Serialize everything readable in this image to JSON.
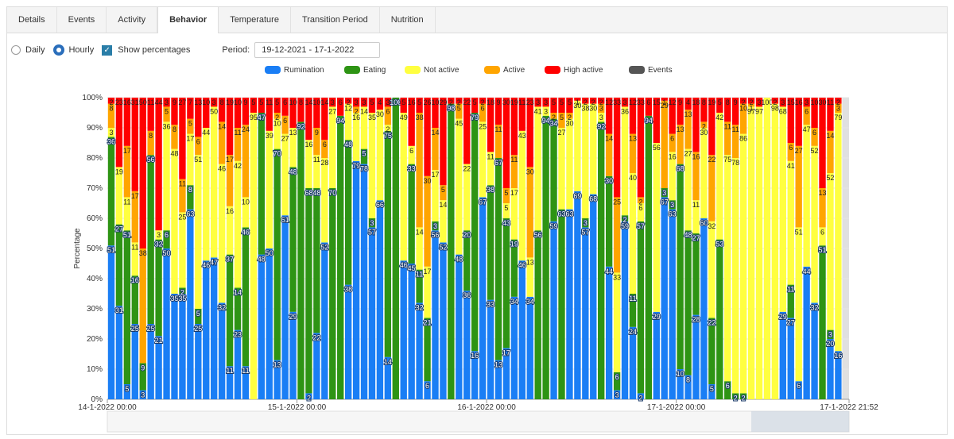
{
  "tabs": [
    "Details",
    "Events",
    "Activity",
    "Behavior",
    "Temperature",
    "Transition Period",
    "Nutrition"
  ],
  "active_tab": 3,
  "controls": {
    "daily": "Daily",
    "hourly": "Hourly",
    "show_percentages": "Show percentages",
    "period_label": "Period:",
    "period": "19-12-2021 - 17-1-2022"
  },
  "chart_data": {
    "type": "bar",
    "stacked": true,
    "y_label": "Percentage",
    "grid": true,
    "x": [
      0,
      1,
      2,
      3,
      4,
      5,
      6,
      7,
      8,
      9,
      10,
      11,
      12,
      13,
      14,
      15,
      16,
      17,
      18,
      19,
      20,
      21,
      22,
      23,
      24,
      25,
      26,
      27,
      28,
      29,
      30,
      31,
      32,
      33,
      34,
      35,
      36,
      37,
      38,
      39,
      40,
      41,
      42,
      43,
      44,
      45,
      46,
      47,
      48,
      49,
      50,
      51,
      52,
      53,
      54,
      55,
      56,
      57,
      58,
      59,
      60,
      61,
      62,
      63,
      64,
      65,
      66,
      67,
      68,
      69,
      70,
      71,
      72,
      73,
      74,
      75,
      76,
      77,
      78,
      79,
      80,
      81,
      82,
      83,
      84,
      85,
      86,
      87,
      88,
      89,
      90,
      91,
      92
    ],
    "xlim": [
      0,
      93.87
    ],
    "xticks": [
      {
        "value": 0,
        "label": "14-1-2022 00:00"
      },
      {
        "value": 24,
        "label": "15-1-2022 00:00"
      },
      {
        "value": 48,
        "label": "16-1-2022 00:00"
      },
      {
        "value": 72,
        "label": "17-1-2022 00:00"
      },
      {
        "value": 93.87,
        "label": "17-1-2022 21:52"
      }
    ],
    "ylim": [
      0,
      100
    ],
    "yticks": [
      {
        "value": 0,
        "label": "0%"
      },
      {
        "value": 10,
        "label": "10%"
      },
      {
        "value": 20,
        "label": "20%"
      },
      {
        "value": 30,
        "label": "30%"
      },
      {
        "value": 40,
        "label": "40%"
      },
      {
        "value": 50,
        "label": "50%"
      },
      {
        "value": 60,
        "label": "60%"
      },
      {
        "value": 70,
        "label": "70%"
      },
      {
        "value": 80,
        "label": "80%"
      },
      {
        "value": 90,
        "label": "90%"
      },
      {
        "value": 100,
        "label": "100%"
      }
    ],
    "series": [
      {
        "name": "Rumination",
        "color": "#1a7ef5",
        "values": [
          51,
          31,
          5,
          25,
          3,
          25,
          21,
          50,
          35,
          35,
          63,
          25,
          46,
          47,
          32,
          11,
          23,
          11,
          0,
          48,
          50,
          13,
          61,
          29,
          0,
          2,
          22,
          52,
          0,
          0,
          38,
          79,
          78,
          57,
          66,
          14,
          0,
          46,
          45,
          32,
          6,
          56,
          52,
          0,
          48,
          36,
          16,
          67,
          33,
          13,
          17,
          34,
          46,
          34,
          0,
          0,
          59,
          0,
          63,
          69,
          57,
          68,
          0,
          44,
          3,
          59,
          24,
          2,
          0,
          29,
          67,
          63,
          10,
          8,
          28,
          60,
          5,
          0,
          0,
          0,
          0,
          0,
          0,
          0,
          0,
          29,
          27,
          6,
          44,
          32,
          0,
          20,
          16
        ]
      },
      {
        "name": "Eating",
        "color": "#2e9414",
        "values": [
          36,
          27,
          51,
          16,
          9,
          56,
          32,
          6,
          0,
          2,
          8,
          5,
          0,
          0,
          0,
          37,
          14,
          46,
          0,
          47,
          0,
          70,
          0,
          48,
          92,
          68,
          48,
          0,
          70,
          94,
          48,
          0,
          5,
          3,
          0,
          75,
          100,
          0,
          33,
          11,
          21,
          3,
          0,
          98,
          0,
          20,
          79,
          0,
          38,
          67,
          43,
          19,
          0,
          0,
          56,
          94,
          34,
          63,
          0,
          0,
          3,
          0,
          92,
          30,
          6,
          2,
          11,
          57,
          94,
          0,
          3,
          3,
          68,
          48,
          27,
          0,
          22,
          53,
          6,
          2,
          2,
          0,
          0,
          0,
          0,
          0,
          11,
          0,
          0,
          0,
          51,
          3,
          0
        ]
      },
      {
        "name": "Not active",
        "color": "#ffff40",
        "values": [
          3,
          19,
          11,
          11,
          0,
          0,
          3,
          36,
          48,
          25,
          17,
          51,
          44,
          50,
          46,
          16,
          42,
          10,
          95,
          0,
          39,
          10,
          27,
          13,
          0,
          16,
          11,
          28,
          27,
          0,
          12,
          16,
          14,
          35,
          30,
          2,
          0,
          49,
          6,
          14,
          17,
          17,
          14,
          0,
          45,
          22,
          0,
          25,
          11,
          0,
          5,
          17,
          43,
          13,
          41,
          3,
          0,
          27,
          30,
          30,
          38,
          30,
          3,
          0,
          33,
          36,
          40,
          6,
          0,
          56,
          0,
          16,
          0,
          27,
          11,
          30,
          32,
          42,
          75,
          78,
          86,
          97,
          97,
          100,
          98,
          68,
          41,
          51,
          47,
          52,
          6,
          52,
          79
        ]
      },
      {
        "name": "Active",
        "color": "#ffa500",
        "values": [
          8,
          0,
          17,
          17,
          38,
          8,
          0,
          5,
          8,
          11,
          5,
          6,
          0,
          0,
          14,
          17,
          11,
          24,
          0,
          0,
          0,
          2,
          6,
          0,
          0,
          0,
          9,
          6,
          0,
          0,
          0,
          2,
          0,
          0,
          0,
          6,
          0,
          0,
          0,
          38,
          30,
          14,
          5,
          0,
          5,
          0,
          0,
          6,
          0,
          11,
          5,
          11,
          0,
          30,
          0,
          0,
          2,
          5,
          2,
          0,
          0,
          0,
          3,
          14,
          25,
          0,
          13,
          2,
          0,
          0,
          29,
          6,
          13,
          13,
          16,
          2,
          22,
          0,
          11,
          11,
          10,
          1,
          0,
          0,
          0,
          0,
          6,
          27,
          6,
          6,
          13,
          14,
          3
        ]
      },
      {
        "name": "High active",
        "color": "#ff0000",
        "values": [
          2,
          23,
          16,
          31,
          50,
          11,
          44,
          3,
          9,
          27,
          7,
          13,
          10,
          3,
          8,
          19,
          10,
          9,
          5,
          5,
          11,
          5,
          6,
          10,
          8,
          14,
          10,
          14,
          3,
          6,
          2,
          3,
          3,
          5,
          4,
          3,
          0,
          5,
          16,
          5,
          26,
          10,
          29,
          2,
          2,
          22,
          5,
          2,
          18,
          9,
          30,
          19,
          11,
          23,
          3,
          3,
          5,
          5,
          5,
          1,
          2,
          2,
          2,
          12,
          33,
          3,
          12,
          33,
          6,
          15,
          1,
          12,
          9,
          4,
          18,
          8,
          19,
          5,
          8,
          9,
          2,
          2,
          3,
          0,
          2,
          3,
          15,
          16,
          3,
          10,
          30,
          11,
          2
        ]
      }
    ],
    "extra_legend": {
      "name": "Events",
      "color": "#555555"
    }
  }
}
